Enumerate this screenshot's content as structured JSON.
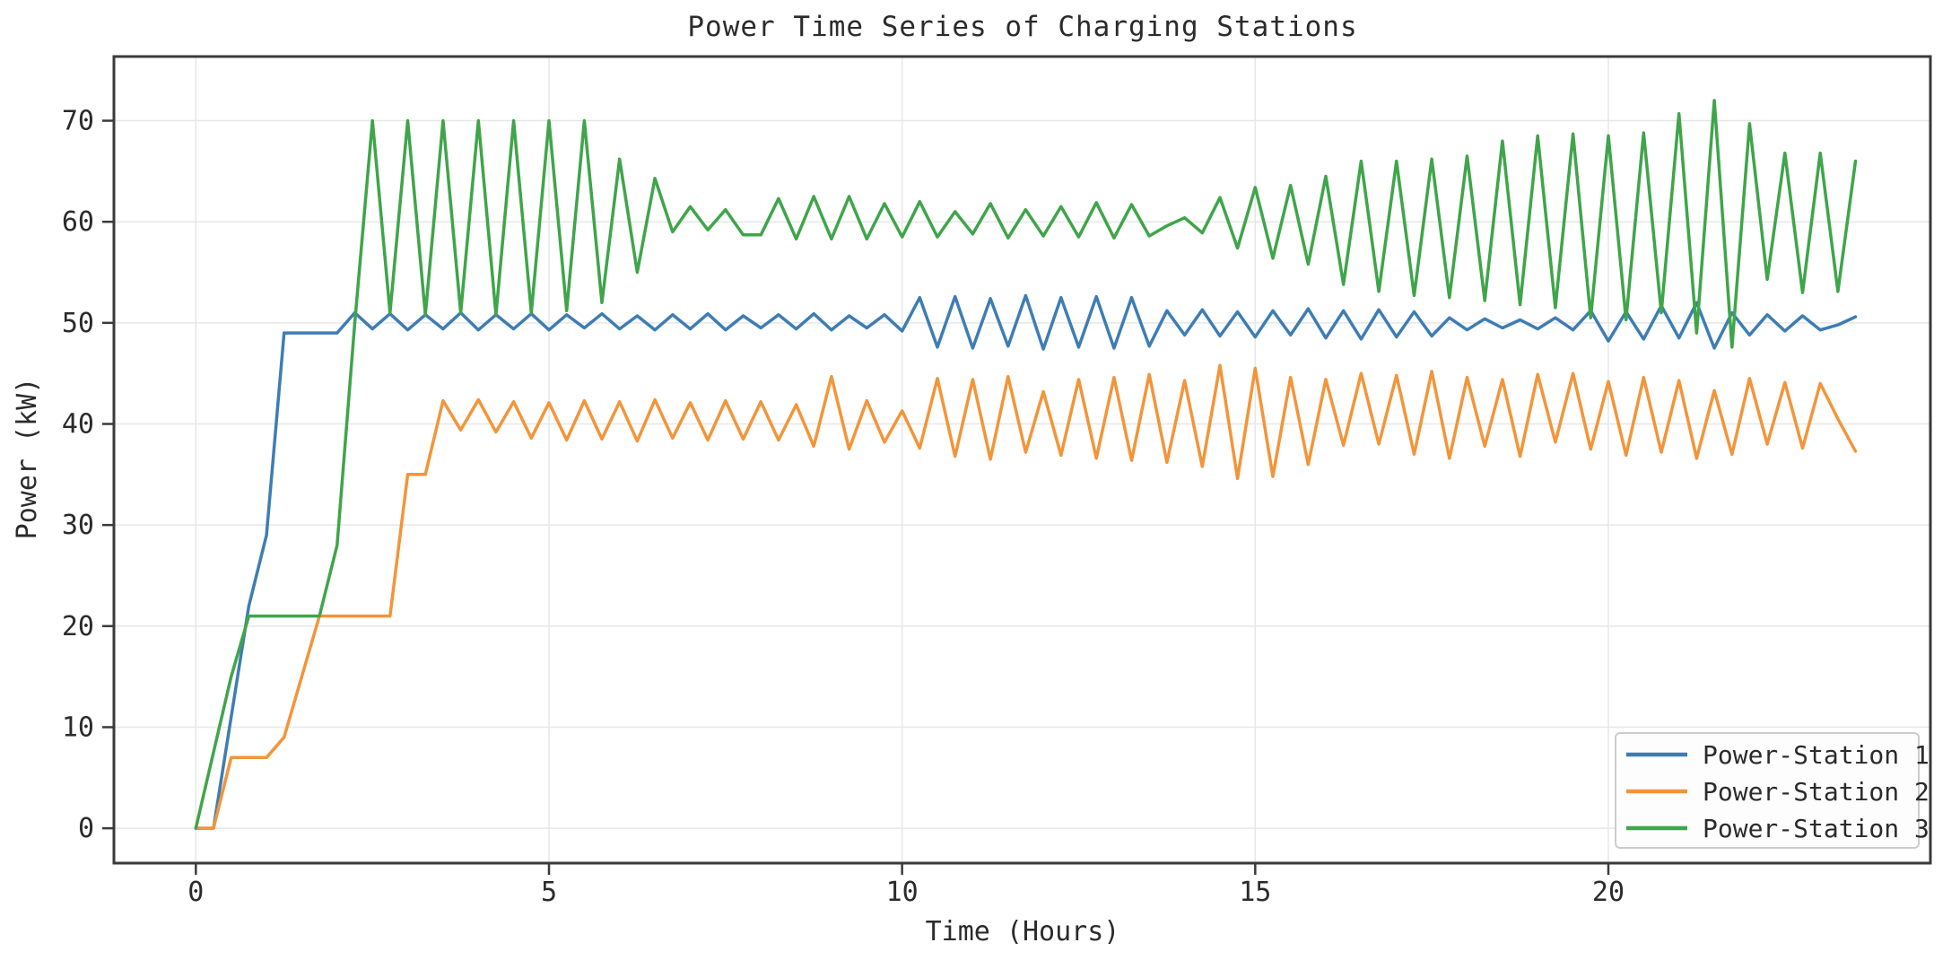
{
  "figure": {
    "title": "Power Time Series of Charging Stations",
    "background": "#ffffff"
  },
  "chart_data": {
    "type": "line",
    "title": "Power Time Series of Charging Stations",
    "xlabel": "Time (Hours)",
    "ylabel": "Power (kW)",
    "x_start": 0,
    "x_step": 0.25,
    "x_ticks": [
      0,
      5,
      10,
      15,
      20
    ],
    "y_ticks": [
      0,
      10,
      20,
      30,
      40,
      50,
      60,
      70
    ],
    "xlim": [
      -1.16,
      24.56
    ],
    "ylim": [
      -3.45,
      76.35
    ],
    "grid": true,
    "legend_position": "lower right",
    "series": [
      {
        "name": "Power-Station 1",
        "color": "#3e7db3",
        "values": [
          0,
          0,
          11,
          22,
          29,
          49,
          49,
          49,
          49,
          51,
          49.4,
          50.9,
          49.3,
          50.8,
          49.4,
          51,
          49.3,
          50.8,
          49.4,
          50.9,
          49.3,
          50.8,
          49.5,
          50.9,
          49.4,
          50.7,
          49.3,
          50.8,
          49.4,
          50.9,
          49.3,
          50.7,
          49.5,
          50.8,
          49.4,
          50.9,
          49.3,
          50.7,
          49.5,
          50.8,
          49.2,
          52.5,
          47.6,
          52.6,
          47.5,
          52.4,
          47.7,
          52.7,
          47.4,
          52.5,
          47.6,
          52.6,
          47.5,
          52.5,
          47.7,
          51.2,
          48.8,
          51.3,
          48.7,
          51.1,
          48.6,
          51.2,
          48.8,
          51.4,
          48.5,
          51.2,
          48.4,
          51.3,
          48.6,
          51.1,
          48.7,
          50.5,
          49.3,
          50.4,
          49.5,
          50.3,
          49.4,
          50.5,
          49.3,
          51.2,
          48.2,
          51.1,
          48.4,
          51.7,
          48.5,
          52,
          47.5,
          51,
          48.8,
          50.8,
          49.2,
          50.7,
          49.3,
          49.8,
          50.6
        ]
      },
      {
        "name": "Power-Station 2",
        "color": "#f2953a",
        "values": [
          0,
          0,
          7,
          7,
          7,
          9,
          15,
          21,
          21,
          21,
          21,
          21,
          35,
          35,
          42.3,
          39.4,
          42.4,
          39.2,
          42.2,
          38.6,
          42.1,
          38.4,
          42.3,
          38.5,
          42.2,
          38.3,
          42.4,
          38.6,
          42.1,
          38.4,
          42.3,
          38.5,
          42.2,
          38.4,
          41.9,
          37.8,
          44.7,
          37.5,
          42.3,
          38.2,
          41.3,
          37.6,
          44.5,
          36.8,
          44.4,
          36.5,
          44.7,
          37.2,
          43.2,
          36.9,
          44.4,
          36.6,
          44.6,
          36.4,
          44.9,
          36.2,
          44.3,
          35.8,
          45.8,
          34.6,
          45.5,
          34.8,
          44.6,
          36,
          44.4,
          37.9,
          45,
          38,
          44.8,
          37,
          45.2,
          36.6,
          44.6,
          37.8,
          44.4,
          36.8,
          44.9,
          38.2,
          45,
          37.5,
          44.2,
          36.9,
          44.6,
          37.2,
          44.3,
          36.6,
          43.3,
          37,
          44.5,
          38,
          44.1,
          37.6,
          44,
          40.5,
          37.3
        ]
      },
      {
        "name": "Power-Station 3",
        "color": "#3fa54a",
        "values": [
          0,
          7.5,
          15,
          21,
          21,
          21,
          21,
          21,
          28,
          50,
          70,
          51,
          70,
          50.8,
          70,
          51,
          70,
          50.8,
          70,
          51,
          70,
          51.2,
          70,
          52,
          66.2,
          55,
          64.3,
          59,
          61.5,
          59.2,
          61.2,
          58.7,
          58.7,
          62.3,
          58.3,
          62.5,
          58.3,
          62.5,
          58.3,
          61.8,
          58.5,
          62,
          58.5,
          61,
          58.8,
          61.8,
          58.4,
          61.2,
          58.6,
          61.5,
          58.5,
          61.9,
          58.4,
          61.7,
          58.6,
          59.6,
          60.4,
          58.9,
          62.4,
          57.4,
          63.4,
          56.4,
          63.6,
          55.8,
          64.5,
          53.8,
          66,
          53.1,
          66,
          52.7,
          66.2,
          52.5,
          66.5,
          52.2,
          68,
          51.8,
          68.5,
          51.5,
          68.7,
          50.5,
          68.5,
          50.3,
          68.8,
          51,
          70.7,
          49,
          72,
          47.6,
          69.7,
          54.3,
          66.8,
          53,
          66.8,
          53.1,
          66
        ]
      }
    ]
  },
  "style": {
    "spine_color": "#3a3a3a",
    "grid_color": "#e7e7e7",
    "text_color": "#2b2b2b",
    "legend_border_color": "#cccccc",
    "legend_fill": "#fdfdfd"
  }
}
